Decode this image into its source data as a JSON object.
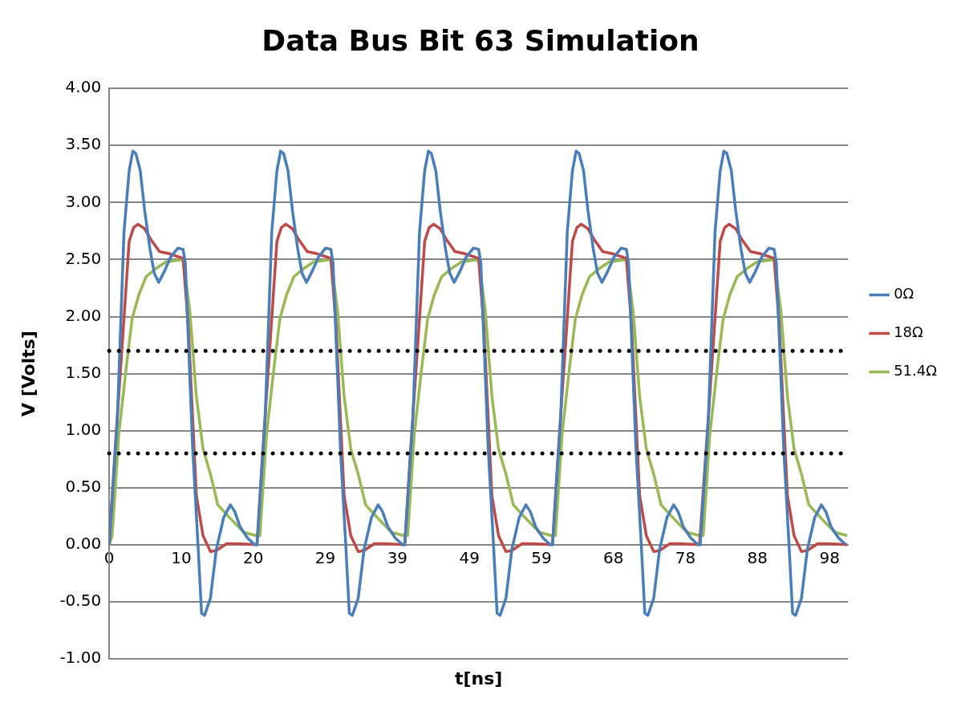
{
  "chart_data": {
    "type": "line",
    "title": "Data Bus Bit 63 Simulation",
    "xlabel": "t[ns]",
    "ylabel": "V [Volts]",
    "xlim": [
      0,
      100
    ],
    "xticks": [
      {
        "value": 0,
        "label": "0"
      },
      {
        "value": 9.75,
        "label": "10"
      },
      {
        "value": 19.5,
        "label": "20"
      },
      {
        "value": 29.25,
        "label": "29"
      },
      {
        "value": 39,
        "label": "39"
      },
      {
        "value": 48.75,
        "label": "49"
      },
      {
        "value": 58.5,
        "label": "59"
      },
      {
        "value": 68.25,
        "label": "68"
      },
      {
        "value": 78,
        "label": "78"
      },
      {
        "value": 87.75,
        "label": "88"
      },
      {
        "value": 97.5,
        "label": "98"
      }
    ],
    "ylim": [
      -1,
      4
    ],
    "yticks": [
      {
        "value": -1,
        "label": "-1.00"
      },
      {
        "value": -0.5,
        "label": "-0.50"
      },
      {
        "value": 0,
        "label": "0.00"
      },
      {
        "value": 0.5,
        "label": "0.50"
      },
      {
        "value": 1,
        "label": "1.00"
      },
      {
        "value": 1.5,
        "label": "1.50"
      },
      {
        "value": 2,
        "label": "2.00"
      },
      {
        "value": 2.5,
        "label": "2.50"
      },
      {
        "value": 3,
        "label": "3.00"
      },
      {
        "value": 3.5,
        "label": "3.50"
      },
      {
        "value": 4,
        "label": "4.00"
      }
    ],
    "grid": "y",
    "legend": "right",
    "marker": "none",
    "line_style": "solid",
    "ref_lines": [
      {
        "axis": "y",
        "value": 1.7,
        "color": "#000000",
        "line_style": "dotted"
      },
      {
        "axis": "y",
        "value": 0.8,
        "color": "#000000",
        "line_style": "dotted"
      }
    ],
    "series": [
      {
        "name": "0Ω",
        "color": "#4a7ebb",
        "x": [
          0,
          1.1,
          2.0,
          2.7,
          3.2,
          3.6,
          4.2,
          4.8,
          5.5,
          6.1,
          6.7,
          7.5,
          8.3,
          9.3,
          10.0,
          10.3,
          10.8,
          11.3,
          12.0,
          12.5,
          12.9,
          13.7,
          14.5,
          15.5,
          16.4,
          17.0,
          17.7,
          18.7,
          19.7,
          20,
          21.1,
          22,
          22.7,
          23.2,
          23.6,
          24.2,
          24.8,
          25.5,
          26.1,
          26.7,
          27.5,
          28.3,
          29.3,
          30,
          30.3,
          30.8,
          31.3,
          32,
          32.5,
          32.9,
          33.7,
          34.5,
          35.5,
          36.4,
          37,
          37.7,
          38.7,
          39.7,
          40,
          41.1,
          42,
          42.7,
          43.2,
          43.6,
          44.2,
          44.8,
          45.5,
          46.1,
          46.7,
          47.5,
          48.3,
          49.3,
          50,
          50.3,
          50.8,
          51.3,
          52,
          52.5,
          52.9,
          53.7,
          54.5,
          55.5,
          56.4,
          57,
          57.7,
          58.7,
          59.7,
          60,
          61.1,
          62,
          62.7,
          63.2,
          63.6,
          64.2,
          64.8,
          65.5,
          66.1,
          66.7,
          67.5,
          68.3,
          69.3,
          70,
          70.3,
          70.8,
          71.3,
          72,
          72.5,
          72.9,
          73.7,
          74.5,
          75.5,
          76.4,
          77,
          77.7,
          78.7,
          79.7,
          80,
          81.1,
          82,
          82.7,
          83.2,
          83.6,
          84.2,
          84.8,
          85.5,
          86.1,
          86.7,
          87.5,
          88.3,
          89.3,
          90,
          90.3,
          90.8,
          91.3,
          92,
          92.5,
          92.9,
          93.7,
          94.5,
          95.5,
          96.4,
          97,
          97.7,
          98.7,
          99.7
        ],
        "values": [
          0,
          1.1,
          2.74,
          3.28,
          3.45,
          3.43,
          3.28,
          2.93,
          2.6,
          2.38,
          2.3,
          2.4,
          2.52,
          2.6,
          2.59,
          2.47,
          1.65,
          0.84,
          0.02,
          -0.6,
          -0.62,
          -0.47,
          -0.04,
          0.24,
          0.35,
          0.29,
          0.16,
          0.06,
          0,
          0,
          1.1,
          2.74,
          3.28,
          3.45,
          3.43,
          3.28,
          2.93,
          2.6,
          2.38,
          2.3,
          2.4,
          2.52,
          2.6,
          2.59,
          2.47,
          1.65,
          0.84,
          0.02,
          -0.6,
          -0.62,
          -0.47,
          -0.04,
          0.24,
          0.35,
          0.29,
          0.16,
          0.06,
          0,
          0,
          1.1,
          2.74,
          3.28,
          3.45,
          3.43,
          3.28,
          2.93,
          2.6,
          2.38,
          2.3,
          2.4,
          2.52,
          2.6,
          2.59,
          2.47,
          1.65,
          0.84,
          0.02,
          -0.6,
          -0.62,
          -0.47,
          -0.04,
          0.24,
          0.35,
          0.29,
          0.16,
          0.06,
          0,
          0,
          1.1,
          2.74,
          3.28,
          3.45,
          3.43,
          3.28,
          2.93,
          2.6,
          2.38,
          2.3,
          2.4,
          2.52,
          2.6,
          2.59,
          2.47,
          1.65,
          0.84,
          0.02,
          -0.6,
          -0.62,
          -0.47,
          -0.04,
          0.24,
          0.35,
          0.29,
          0.16,
          0.06,
          0,
          0,
          1.1,
          2.74,
          3.28,
          3.45,
          3.43,
          3.28,
          2.93,
          2.6,
          2.38,
          2.3,
          2.4,
          2.52,
          2.6,
          2.59,
          2.47,
          1.65,
          0.84,
          0.02,
          -0.6,
          -0.62,
          -0.47,
          -0.04,
          0.24,
          0.35,
          0.29,
          0.16,
          0.06,
          0
        ]
      },
      {
        "name": "18Ω",
        "color": "#be4b48",
        "x": [
          0,
          0.8,
          1.8,
          2.7,
          3.3,
          3.9,
          4.8,
          5.7,
          6.8,
          8.2,
          10.0,
          10.7,
          11.2,
          11.8,
          12.7,
          13.7,
          14.5,
          15.9,
          17.2,
          19.9,
          20,
          20.8,
          21.8,
          22.7,
          23.3,
          23.9,
          24.8,
          25.7,
          26.8,
          28.2,
          30,
          30.7,
          31.2,
          31.8,
          32.7,
          33.7,
          34.5,
          35.9,
          37.2,
          39.9,
          40,
          40.8,
          41.8,
          42.7,
          43.3,
          43.9,
          44.8,
          45.7,
          46.8,
          48.2,
          50,
          50.7,
          51.2,
          51.8,
          52.7,
          53.7,
          54.5,
          55.9,
          57.2,
          59.9,
          60,
          60.8,
          61.8,
          62.7,
          63.3,
          63.9,
          64.8,
          65.7,
          66.8,
          68.2,
          70,
          70.7,
          71.2,
          71.8,
          72.7,
          73.7,
          74.5,
          75.9,
          77.2,
          79.9,
          80,
          80.8,
          81.8,
          82.7,
          83.3,
          83.9,
          84.8,
          85.7,
          86.8,
          88.2,
          90,
          90.7,
          91.2,
          91.8,
          92.7,
          93.7,
          94.5,
          95.9,
          97.2,
          99.9
        ],
        "values": [
          0,
          0.84,
          1.79,
          2.66,
          2.78,
          2.81,
          2.77,
          2.67,
          2.57,
          2.55,
          2.51,
          1.92,
          1.24,
          0.43,
          0.08,
          -0.06,
          -0.05,
          0.01,
          0.01,
          0,
          0,
          0.84,
          1.79,
          2.66,
          2.78,
          2.81,
          2.77,
          2.67,
          2.57,
          2.55,
          2.51,
          1.92,
          1.24,
          0.43,
          0.08,
          -0.06,
          -0.05,
          0.01,
          0.01,
          0,
          0,
          0.84,
          1.79,
          2.66,
          2.78,
          2.81,
          2.77,
          2.67,
          2.57,
          2.55,
          2.51,
          1.92,
          1.24,
          0.43,
          0.08,
          -0.06,
          -0.05,
          0.01,
          0.01,
          0,
          0,
          0.84,
          1.79,
          2.66,
          2.78,
          2.81,
          2.77,
          2.67,
          2.57,
          2.55,
          2.51,
          1.92,
          1.24,
          0.43,
          0.08,
          -0.06,
          -0.05,
          0.01,
          0.01,
          0,
          0,
          0.84,
          1.79,
          2.66,
          2.78,
          2.81,
          2.77,
          2.67,
          2.57,
          2.55,
          2.51,
          1.92,
          1.24,
          0.43,
          0.08,
          -0.06,
          -0.05,
          0.01,
          0.01,
          0
        ]
      },
      {
        "name": "51.4Ω",
        "color": "#98b954",
        "x": [
          0,
          0.4,
          1.3,
          2.3,
          3.1,
          4.0,
          5.0,
          6.3,
          7.7,
          10.0,
          10.9,
          11.8,
          12.7,
          13.7,
          14.7,
          16.4,
          18.2,
          19.9,
          20.4,
          21.3,
          22.3,
          23.1,
          24,
          25,
          26.3,
          27.7,
          30,
          30.9,
          31.8,
          32.7,
          33.7,
          34.7,
          36.4,
          38.2,
          39.9,
          40.4,
          41.3,
          42.3,
          43.1,
          44,
          45,
          46.3,
          47.7,
          50,
          50.9,
          51.8,
          52.7,
          53.7,
          54.7,
          56.4,
          58.2,
          59.9,
          60.4,
          61.3,
          62.3,
          63.1,
          64,
          65,
          66.3,
          67.7,
          70,
          70.9,
          71.8,
          72.7,
          73.7,
          74.7,
          76.4,
          78.2,
          79.9,
          80.4,
          81.3,
          82.3,
          83.1,
          84,
          85,
          86.3,
          87.7,
          90,
          90.9,
          91.8,
          92.7,
          93.7,
          94.7,
          96.4,
          98.2,
          99.9
        ],
        "values": [
          0,
          0.08,
          0.97,
          1.55,
          1.98,
          2.19,
          2.35,
          2.42,
          2.48,
          2.5,
          2.06,
          1.3,
          0.84,
          0.62,
          0.35,
          0.23,
          0.11,
          0.08,
          0.08,
          0.97,
          1.55,
          1.98,
          2.19,
          2.35,
          2.42,
          2.48,
          2.5,
          2.06,
          1.3,
          0.84,
          0.62,
          0.35,
          0.23,
          0.11,
          0.08,
          0.08,
          0.97,
          1.55,
          1.98,
          2.19,
          2.35,
          2.42,
          2.48,
          2.5,
          2.06,
          1.3,
          0.84,
          0.62,
          0.35,
          0.23,
          0.11,
          0.08,
          0.08,
          0.97,
          1.55,
          1.98,
          2.19,
          2.35,
          2.42,
          2.48,
          2.5,
          2.06,
          1.3,
          0.84,
          0.62,
          0.35,
          0.23,
          0.11,
          0.08,
          0.08,
          0.97,
          1.55,
          1.98,
          2.19,
          2.35,
          2.42,
          2.48,
          2.5,
          2.06,
          1.3,
          0.84,
          0.62,
          0.35,
          0.23,
          0.11,
          0.08
        ]
      }
    ]
  }
}
